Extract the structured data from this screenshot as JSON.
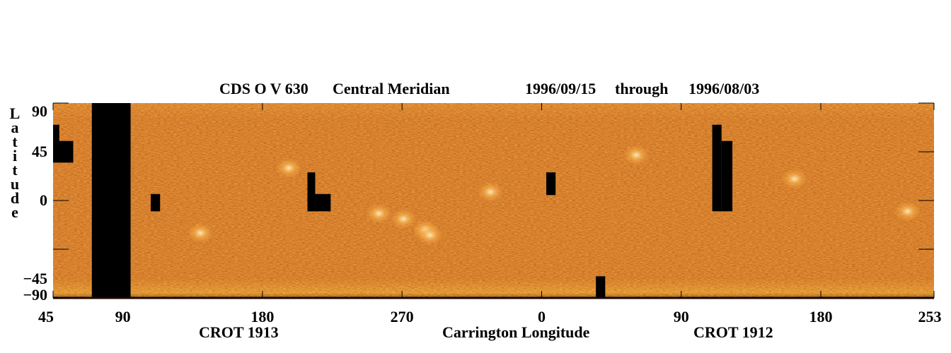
{
  "title": {
    "instrument": "CDS O V 630",
    "view": "Central Meridian",
    "start_date": "1996/09/15",
    "through": "through",
    "end_date": "1996/08/03"
  },
  "chart_data": {
    "type": "heatmap",
    "title": "CDS O V 630   Central Meridian   1996/09/15   through   1996/08/03",
    "ylabel": "Latitude",
    "xlabel": "Carrington Longitude",
    "rotations": [
      "CROT 1913",
      "CROT 1912"
    ],
    "y_ticks": [
      {
        "label": "90",
        "value": 90
      },
      {
        "label": "45",
        "value": 45
      },
      {
        "label": "0",
        "value": 0
      },
      {
        "label": "−45",
        "value": -45
      },
      {
        "label": "−90",
        "value": -90
      }
    ],
    "x_ticks": [
      {
        "label": "45",
        "position": 0
      },
      {
        "label": "90",
        "position": 45
      },
      {
        "label": "180",
        "position": 135
      },
      {
        "label": "270",
        "position": 225
      },
      {
        "label": "0",
        "position": 315
      },
      {
        "label": "90",
        "position": 405
      },
      {
        "label": "180",
        "position": 495
      },
      {
        "label": "253",
        "position": 568
      }
    ],
    "x_range": [
      0,
      568
    ],
    "colormap": "red-orange-yellow (solar intensity)",
    "background_color": "#c8501e",
    "gap_color": "#000000",
    "data_gaps": [
      {
        "x": [
          25,
          50
        ],
        "lat": [
          -90,
          90
        ]
      },
      {
        "x": [
          0,
          4
        ],
        "lat": [
          45,
          70
        ]
      },
      {
        "x": [
          0,
          13
        ],
        "lat": [
          35,
          55
        ]
      },
      {
        "x": [
          63,
          69
        ],
        "lat": [
          -10,
          6
        ]
      },
      {
        "x": [
          164,
          169
        ],
        "lat": [
          -10,
          26
        ]
      },
      {
        "x": [
          169,
          179
        ],
        "lat": [
          -10,
          6
        ]
      },
      {
        "x": [
          318,
          324
        ],
        "lat": [
          5,
          26
        ]
      },
      {
        "x": [
          350,
          356
        ],
        "lat": [
          -90,
          -70
        ]
      },
      {
        "x": [
          425,
          431
        ],
        "lat": [
          -10,
          70
        ]
      },
      {
        "x": [
          431,
          438
        ],
        "lat": [
          -10,
          55
        ]
      }
    ],
    "bright_regions": [
      {
        "x": 210,
        "lat": -12
      },
      {
        "x": 226,
        "lat": -17
      },
      {
        "x": 240,
        "lat": -27
      },
      {
        "x": 478,
        "lat": 20
      },
      {
        "x": 551,
        "lat": -10
      },
      {
        "x": 376,
        "lat": 42
      },
      {
        "x": 152,
        "lat": 30
      },
      {
        "x": 95,
        "lat": -30
      },
      {
        "x": 243,
        "lat": -32
      },
      {
        "x": 282,
        "lat": 8
      }
    ]
  }
}
